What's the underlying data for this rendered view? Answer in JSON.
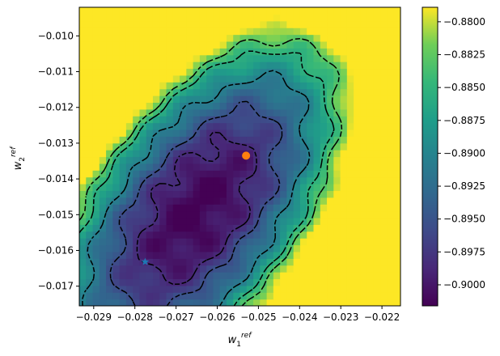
{
  "chart_data": {
    "type": "heatmap",
    "title": "",
    "xlabel": "w",
    "xlabel_sub": "1",
    "xlabel_sup": "ref",
    "ylabel": "w",
    "ylabel_sub": "2",
    "ylabel_sup": "ref",
    "xlim": [
      -0.02935,
      -0.02155
    ],
    "ylim": [
      -0.01755,
      -0.0092
    ],
    "x_ticks": [
      -0.029,
      -0.028,
      -0.027,
      -0.026,
      -0.025,
      -0.024,
      -0.023,
      -0.022
    ],
    "x_tick_labels": [
      "−0.029",
      "−0.028",
      "−0.027",
      "−0.026",
      "−0.025",
      "−0.024",
      "−0.023",
      "−0.022"
    ],
    "y_ticks": [
      -0.01,
      -0.011,
      -0.012,
      -0.013,
      -0.014,
      -0.015,
      -0.016,
      -0.017
    ],
    "y_tick_labels": [
      "−0.010",
      "−0.011",
      "−0.012",
      "−0.013",
      "−0.014",
      "−0.015",
      "−0.016",
      "−0.017"
    ],
    "colorbar": {
      "colormap": "viridis",
      "vmin": -0.9016,
      "vmax": -0.8789,
      "ticks": [
        -0.88,
        -0.8825,
        -0.885,
        -0.8875,
        -0.89,
        -0.8925,
        -0.895,
        -0.8975,
        -0.9
      ],
      "tick_labels": [
        "−0.8800",
        "−0.8825",
        "−0.8850",
        "−0.8875",
        "−0.8900",
        "−0.8925",
        "−0.8950",
        "−0.8975",
        "−0.9000"
      ]
    },
    "grid": false,
    "contour_style": "dashed black",
    "contour_levels": [
      -0.883,
      -0.8855,
      -0.8905,
      -0.8955,
      -0.8985
    ],
    "minimum_basin": {
      "x": -0.0265,
      "y": -0.0149,
      "value": -0.9016
    },
    "markers": [
      {
        "kind": "circle",
        "x": -0.0253,
        "y": -0.01335,
        "color": "#ff7f0e"
      },
      {
        "kind": "star",
        "x": -0.02775,
        "y": -0.01632,
        "color": "#1f77b4"
      }
    ]
  }
}
